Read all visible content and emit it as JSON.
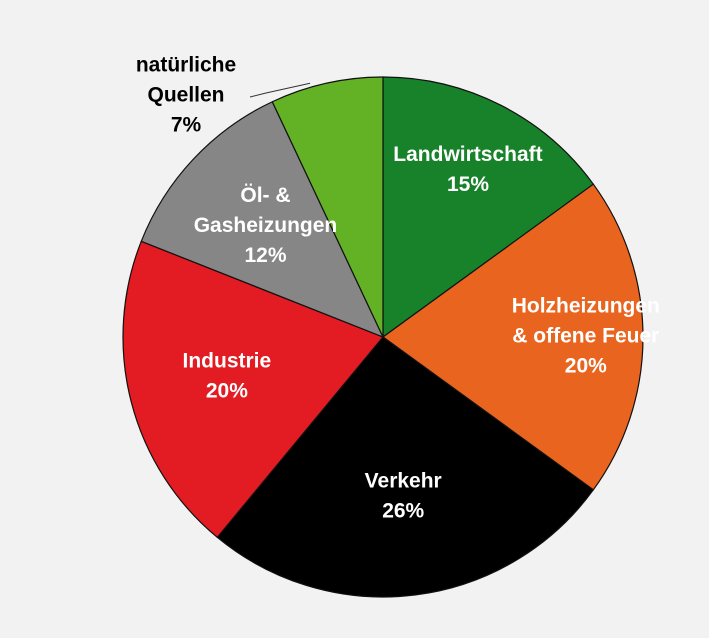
{
  "chart_data": {
    "type": "pie",
    "title": "",
    "start_angle_deg": 0,
    "direction": "clockwise",
    "slice_stroke_color": "#111111",
    "background_color": "#f2f2f2",
    "slices": [
      {
        "label_lines": [
          "Landwirtschaft"
        ],
        "value_label": "15%",
        "value": 15,
        "color": "#178229",
        "text_color": "#ffffff",
        "label_position": "inside"
      },
      {
        "label_lines": [
          "Holzheizungen",
          "& offene Feuer"
        ],
        "value_label": "20%",
        "value": 20,
        "color": "#e8641f",
        "text_color": "#ffffff",
        "label_position": "inside"
      },
      {
        "label_lines": [
          "Verkehr"
        ],
        "value_label": "26%",
        "value": 26,
        "color": "#000000",
        "text_color": "#ffffff",
        "label_position": "inside"
      },
      {
        "label_lines": [
          "Industrie"
        ],
        "value_label": "20%",
        "value": 20,
        "color": "#e31b22",
        "text_color": "#ffffff",
        "label_position": "inside"
      },
      {
        "label_lines": [
          "Öl- &",
          "Gasheizungen"
        ],
        "value_label": "12%",
        "value": 12,
        "color": "#868686",
        "text_color": "#ffffff",
        "label_position": "inside"
      },
      {
        "label_lines": [
          "natürliche",
          "Quellen"
        ],
        "value_label": "7%",
        "value": 7,
        "color": "#63b125",
        "text_color": "#000000",
        "label_position": "outside"
      }
    ]
  }
}
